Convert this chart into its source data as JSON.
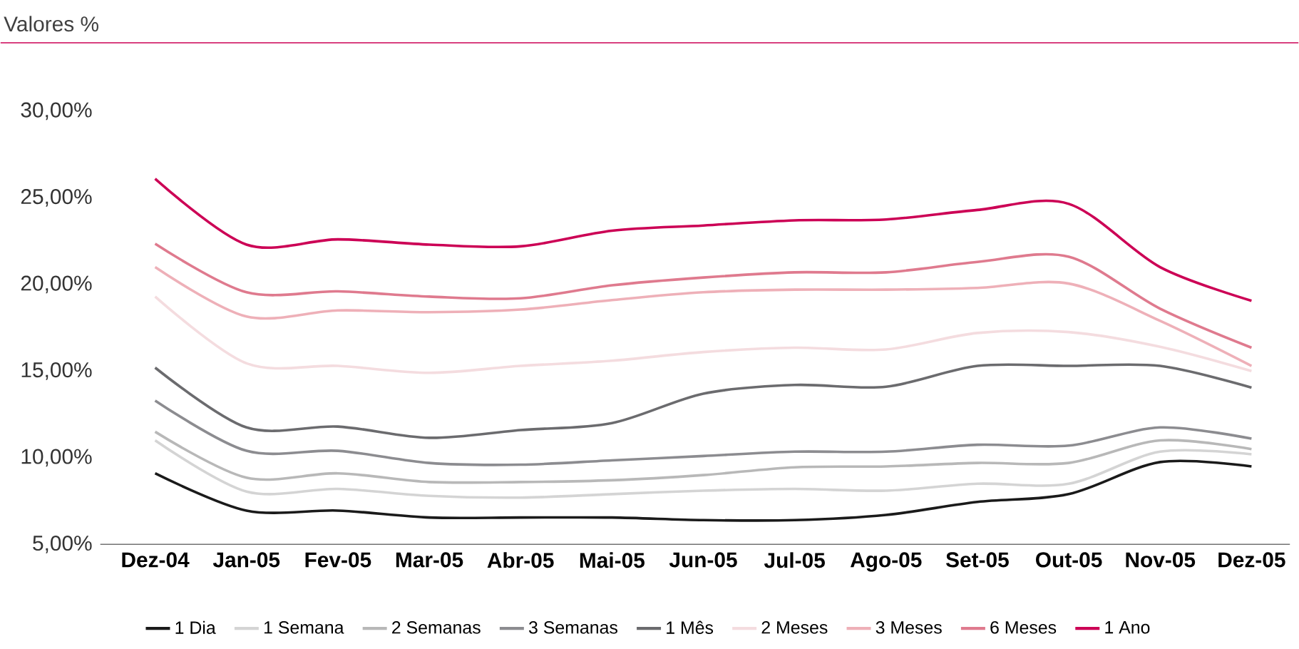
{
  "chart_data": {
    "type": "line",
    "title": "Valores %",
    "categories": [
      "Dez-04",
      "Jan-05",
      "Fev-05",
      "Mar-05",
      "Abr-05",
      "Mai-05",
      "Jun-05",
      "Jul-05",
      "Ago-05",
      "Set-05",
      "Out-05",
      "Nov-05",
      "Dez-05"
    ],
    "ylim": [
      5,
      30
    ],
    "yticks": [
      {
        "value": 5,
        "label": "5,00%"
      },
      {
        "value": 10,
        "label": "10,00%"
      },
      {
        "value": 15,
        "label": "15,00%"
      },
      {
        "value": 20,
        "label": "20,00%"
      },
      {
        "value": 25,
        "label": "25,00%"
      },
      {
        "value": 30,
        "label": "30,00%"
      }
    ],
    "legend": "bottom",
    "line_style": "solid",
    "series": [
      {
        "name": "1 Dia",
        "color": "#1a1a1a",
        "values": [
          9.1,
          6.95,
          6.95,
          6.55,
          6.55,
          6.55,
          6.4,
          6.4,
          6.7,
          7.45,
          7.9,
          9.75,
          9.5
        ]
      },
      {
        "name": "1 Semana",
        "color": "#d4d4d4",
        "values": [
          11.0,
          8.05,
          8.2,
          7.8,
          7.7,
          7.9,
          8.1,
          8.2,
          8.1,
          8.5,
          8.5,
          10.35,
          10.2
        ]
      },
      {
        "name": "2 Semanas",
        "color": "#b8b8b8",
        "values": [
          11.5,
          8.85,
          9.1,
          8.6,
          8.6,
          8.7,
          9.0,
          9.45,
          9.5,
          9.7,
          9.7,
          11.0,
          10.5
        ]
      },
      {
        "name": "3 Semanas",
        "color": "#8c8c90",
        "values": [
          13.3,
          10.4,
          10.4,
          9.7,
          9.6,
          9.85,
          10.1,
          10.35,
          10.35,
          10.75,
          10.7,
          11.75,
          11.1
        ]
      },
      {
        "name": "1 Mês",
        "color": "#6b6b6e",
        "values": [
          15.2,
          11.75,
          11.8,
          11.15,
          11.6,
          12.0,
          13.7,
          14.2,
          14.1,
          15.3,
          15.3,
          15.3,
          14.05
        ]
      },
      {
        "name": "2 Meses",
        "color": "#f4dcdf",
        "values": [
          19.3,
          15.45,
          15.3,
          14.9,
          15.3,
          15.6,
          16.1,
          16.35,
          16.25,
          17.2,
          17.25,
          16.4,
          15.0
        ]
      },
      {
        "name": "3 Meses",
        "color": "#eeb0b8",
        "values": [
          21.0,
          18.15,
          18.5,
          18.4,
          18.55,
          19.1,
          19.55,
          19.7,
          19.7,
          19.8,
          20.05,
          17.9,
          15.3
        ]
      },
      {
        "name": "6 Meses",
        "color": "#df7a8e",
        "values": [
          22.35,
          19.55,
          19.6,
          19.3,
          19.2,
          19.95,
          20.4,
          20.7,
          20.7,
          21.3,
          21.6,
          18.6,
          16.35
        ]
      },
      {
        "name": "1 Ano",
        "color": "#cc0055",
        "values": [
          26.1,
          22.3,
          22.6,
          22.3,
          22.2,
          23.1,
          23.4,
          23.7,
          23.75,
          24.3,
          24.65,
          21.0,
          19.06
        ]
      }
    ]
  }
}
